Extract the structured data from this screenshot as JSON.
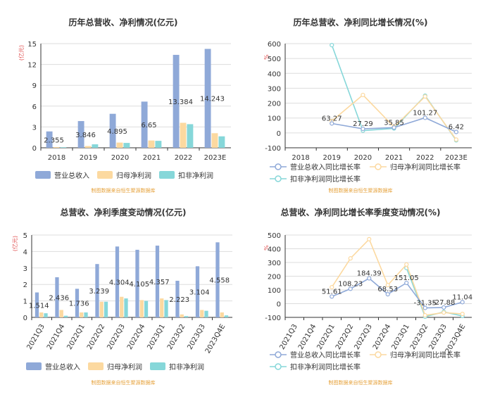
{
  "colors": {
    "revenue": "#8fa9d8",
    "net_profit": "#fcd9a0",
    "deducted_profit": "#86d7d9",
    "axis": "#333333",
    "grid": "#dddddd",
    "unit": "#e05050",
    "source": "#e6a23c"
  },
  "chart_data": [
    {
      "type": "bar",
      "title": "历年总营收、净利情况(亿元)",
      "ylabel": "(亿元)",
      "categories": [
        "2018",
        "2019",
        "2020",
        "2021",
        "2022",
        "2023E"
      ],
      "ylim": [
        0,
        15
      ],
      "yticks": [
        0,
        3,
        6,
        9,
        12,
        15
      ],
      "series": [
        {
          "name": "营业总收入",
          "values": [
            2.355,
            3.846,
            4.895,
            6.65,
            13.384,
            14.243
          ],
          "labels": [
            "2.355",
            "3.846",
            "4.895",
            "6.65",
            "13.384",
            "14.243"
          ]
        },
        {
          "name": "归母净利润",
          "values": [
            0.1,
            0.25,
            0.75,
            1.05,
            3.6,
            2.1
          ]
        },
        {
          "name": "扣非净利润",
          "values": [
            0.08,
            0.5,
            0.7,
            1.0,
            3.4,
            1.65
          ]
        }
      ],
      "legend": "bottom",
      "source": "制图数据来自恒生聚源数据库"
    },
    {
      "type": "line",
      "title": "历年总营收、净利同比增长情况(%)",
      "ylabel": "%",
      "categories": [
        "2018",
        "2019",
        "2020",
        "2021",
        "2022",
        "2023E"
      ],
      "ylim": [
        -100,
        600
      ],
      "yticks": [
        -100,
        0,
        100,
        200,
        300,
        400,
        500,
        600
      ],
      "series": [
        {
          "name": "营业总收入同比增长率",
          "values": [
            null,
            63.27,
            27.29,
            35.85,
            101.27,
            6.42
          ],
          "labels": [
            "",
            "63.27",
            "27.29",
            "35.85",
            "101.27",
            "6.42"
          ]
        },
        {
          "name": "归母净利润同比增长率",
          "values": [
            null,
            80,
            255,
            40,
            245,
            -45
          ]
        },
        {
          "name": "扣非净利润同比增长率",
          "values": [
            null,
            590,
            15,
            30,
            250,
            -50
          ]
        }
      ],
      "legend": "bottom",
      "source": "制图数据来自恒生聚源数据库"
    },
    {
      "type": "bar",
      "title": "总营收、净利季度变动情况(亿元)",
      "ylabel": "(亿元)",
      "categories": [
        "2021Q3",
        "2021Q4",
        "2022Q1",
        "2022Q2",
        "2022Q3",
        "2022Q4",
        "2023Q1",
        "2023Q2",
        "2023Q3",
        "2023Q4E"
      ],
      "ylim": [
        0,
        5
      ],
      "yticks": [
        0,
        1,
        2,
        3,
        4,
        5
      ],
      "series": [
        {
          "name": "营业总收入",
          "values": [
            1.514,
            2.436,
            1.736,
            3.239,
            4.304,
            4.105,
            4.357,
            2.223,
            3.104,
            4.558
          ],
          "labels": [
            "1.514",
            "2.436",
            "1.736",
            "3.239",
            "4.304",
            "4.105",
            "4.357",
            "2.223",
            "3.104",
            "4.558"
          ]
        },
        {
          "name": "归母净利润",
          "values": [
            0.3,
            0.45,
            0.3,
            0.95,
            1.25,
            1.05,
            1.15,
            0.18,
            0.45,
            0.3
          ]
        },
        {
          "name": "扣非净利润",
          "values": [
            0.25,
            0.1,
            0.3,
            0.95,
            1.15,
            1.0,
            1.05,
            0.08,
            0.4,
            0.12
          ]
        }
      ],
      "legend": "bottom",
      "source": "制图数据来自恒生聚源数据库"
    },
    {
      "type": "line",
      "title": "总营收、净利同比增长率季度变动情况(%)",
      "ylabel": "%",
      "categories": [
        "2021Q3",
        "2021Q4",
        "2022Q1",
        "2022Q2",
        "2022Q3",
        "2022Q4",
        "2023Q1",
        "2023Q2",
        "2023Q3",
        "2023Q4E"
      ],
      "ylim": [
        -100,
        500
      ],
      "yticks": [
        -100,
        0,
        100,
        200,
        300,
        400,
        500
      ],
      "series": [
        {
          "name": "营业总收入同比增长率",
          "values": [
            null,
            null,
            51.61,
            108.23,
            184.39,
            68.53,
            151.05,
            -31.35,
            -27.88,
            11.04
          ],
          "labels": [
            "",
            "",
            "51.61",
            "108.23",
            "184.39",
            "68.53",
            "151.05",
            "-31.35",
            "-27.88",
            "11.04"
          ]
        },
        {
          "name": "归母净利润同比增长率",
          "values": [
            null,
            null,
            120,
            330,
            470,
            135,
            285,
            -85,
            -65,
            -75
          ]
        },
        {
          "name": "扣非净利润同比增长率",
          "values": [
            null,
            null,
            null,
            null,
            null,
            null,
            260,
            -95,
            -60,
            -90
          ]
        }
      ],
      "legend": "bottom",
      "source": "制图数据来自恒生聚源数据库"
    }
  ]
}
